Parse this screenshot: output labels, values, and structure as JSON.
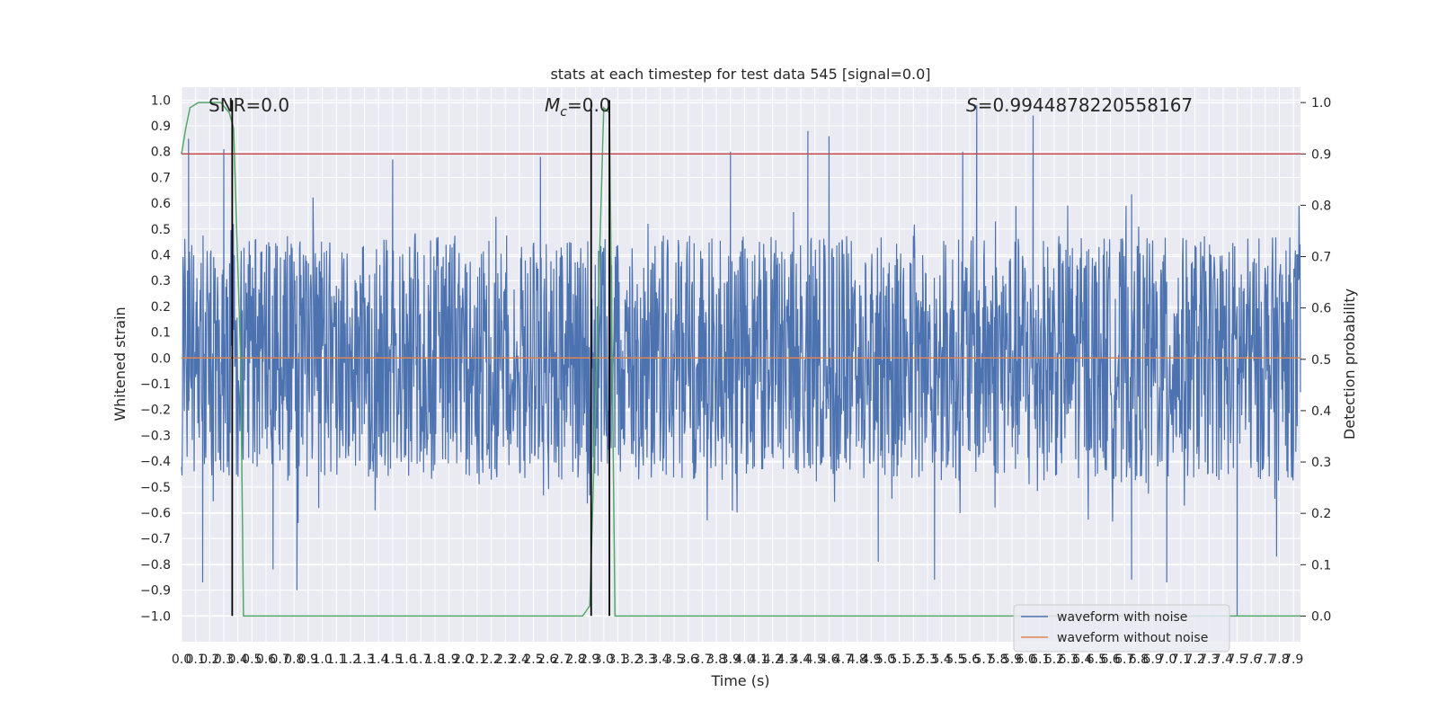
{
  "chart_data": {
    "type": "line",
    "title": "stats at each timestep for test data 545 [signal=0.0]",
    "xlabel": "Time (s)",
    "ylabel": "Whitened strain",
    "y2label": "Detection probability",
    "xlim": [
      0.0,
      7.95
    ],
    "ylim": [
      -1.1,
      1.05
    ],
    "y2lim": [
      -0.05,
      1.03
    ],
    "xticks": [
      0.0,
      0.1,
      0.2,
      0.3,
      0.4,
      0.5,
      0.6,
      0.7,
      0.8,
      0.9,
      1.0,
      1.1,
      1.2,
      1.3,
      1.4,
      1.5,
      1.6,
      1.7,
      1.8,
      1.9,
      2.0,
      2.1,
      2.2,
      2.3,
      2.4,
      2.5,
      2.6,
      2.7,
      2.8,
      2.9,
      3.0,
      3.1,
      3.2,
      3.3,
      3.4,
      3.5,
      3.6,
      3.7,
      3.8,
      3.9,
      4.0,
      4.1,
      4.2,
      4.3,
      4.4,
      4.5,
      4.6,
      4.7,
      4.8,
      4.9,
      5.0,
      5.1,
      5.2,
      5.3,
      5.4,
      5.5,
      5.6,
      5.7,
      5.8,
      5.9,
      6.0,
      6.1,
      6.2,
      6.3,
      6.4,
      6.5,
      6.6,
      6.7,
      6.8,
      6.9,
      7.0,
      7.1,
      7.2,
      7.3,
      7.4,
      7.5,
      7.6,
      7.7,
      7.8,
      7.9
    ],
    "yticks": [
      -1.0,
      -0.9,
      -0.8,
      -0.7,
      -0.6,
      -0.5,
      -0.4,
      -0.3,
      -0.2,
      -0.1,
      0.0,
      0.1,
      0.2,
      0.3,
      0.4,
      0.5,
      0.6,
      0.7,
      0.8,
      0.9,
      1.0
    ],
    "y2ticks": [
      0.0,
      0.1,
      0.2,
      0.3,
      0.4,
      0.5,
      0.6,
      0.7,
      0.8,
      0.9,
      1.0
    ],
    "grid": true,
    "legend_position": "bottom-right",
    "series": [
      {
        "name": "waveform with noise",
        "axis": "left",
        "color": "#4c72b0",
        "description_of_values": "dense noisy strain, roughly within -0.6..0.6 with spikes",
        "peaks": [
          {
            "x": 0.05,
            "y": 0.85
          },
          {
            "x": 0.3,
            "y": 0.81
          },
          {
            "x": 1.5,
            "y": 0.77
          },
          {
            "x": 2.55,
            "y": 0.78
          },
          {
            "x": 3.9,
            "y": 0.8
          },
          {
            "x": 4.45,
            "y": 0.88
          },
          {
            "x": 4.6,
            "y": 0.86
          },
          {
            "x": 5.55,
            "y": 0.8
          },
          {
            "x": 5.65,
            "y": 0.98
          },
          {
            "x": 6.05,
            "y": 0.94
          }
        ],
        "troughs": [
          {
            "x": 0.15,
            "y": -0.87
          },
          {
            "x": 0.65,
            "y": -0.82
          },
          {
            "x": 0.82,
            "y": -0.9
          },
          {
            "x": 4.95,
            "y": -0.79
          },
          {
            "x": 5.35,
            "y": -0.86
          },
          {
            "x": 6.75,
            "y": -0.86
          },
          {
            "x": 7.0,
            "y": -0.87
          },
          {
            "x": 7.5,
            "y": -1.0
          },
          {
            "x": 7.78,
            "y": -0.77
          }
        ]
      },
      {
        "name": "waveform without noise",
        "axis": "left",
        "color": "#dd8452",
        "x": [
          0.0,
          7.95
        ],
        "values": [
          0.0,
          0.0
        ]
      },
      {
        "name": "",
        "axis": "right",
        "color": "#55a868",
        "x": [
          0.0,
          0.03,
          0.06,
          0.12,
          0.28,
          0.34,
          0.37,
          0.42,
          0.44,
          0.7,
          0.8,
          1.5,
          2.5,
          2.85,
          2.9,
          2.92,
          2.94,
          2.97,
          3.0,
          3.04,
          3.08,
          3.1,
          3.2,
          7.95
        ],
        "values": [
          0.9,
          0.95,
          0.99,
          1.0,
          1.0,
          0.98,
          0.95,
          0.5,
          0.0,
          0.0,
          0.0,
          0.0,
          0.0,
          0.0,
          0.02,
          0.2,
          0.4,
          0.7,
          0.99,
          0.98,
          0.0,
          0.0,
          0.0,
          0.0
        ]
      },
      {
        "name": "",
        "axis": "right",
        "color": "#c44e52",
        "x": [
          0.0,
          7.95
        ],
        "values": [
          0.9,
          0.9
        ]
      }
    ],
    "vlines": [
      0.36,
      2.91,
      3.04
    ],
    "annotations": {
      "snr": "SNR=0.0",
      "mc_symbol": "M",
      "mc_sub": "c",
      "mc_value": "=0.0",
      "s_symbol": "S",
      "s_value": "=0.9944878220558167"
    }
  }
}
